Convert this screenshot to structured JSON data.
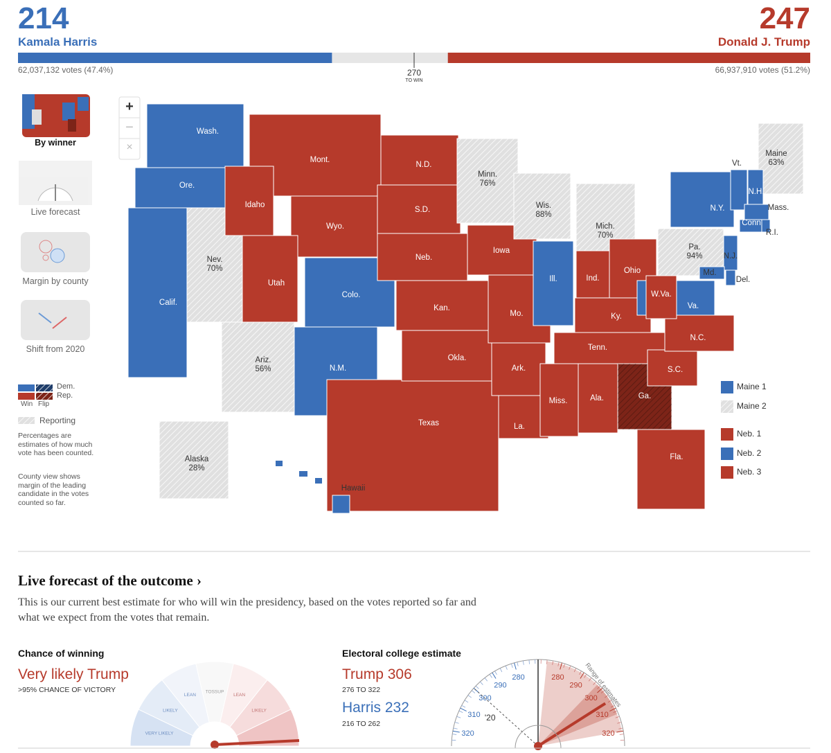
{
  "header": {
    "harris": {
      "electoral_votes": 214,
      "name": "Kamala Harris",
      "popular_vote": "62,037,132 votes (47.4%)",
      "color": "#3a6fb8"
    },
    "trump": {
      "electoral_votes": 247,
      "name": "Donald J. Trump",
      "popular_vote": "66,937,910 votes (51.2%)",
      "color": "#b63a2b"
    },
    "to_win": {
      "value": 270,
      "label": "TO WIN"
    }
  },
  "map_controls": [
    "+",
    "−",
    "×"
  ],
  "views": [
    {
      "label": "By winner",
      "selected": true
    },
    {
      "label": "Live forecast",
      "selected": false
    },
    {
      "label": "Margin by county",
      "selected": false
    },
    {
      "label": "Shift from 2020",
      "selected": false
    }
  ],
  "legend": {
    "dem": "Dem.",
    "rep": "Rep.",
    "win": "Win",
    "flip": "Flip",
    "reporting": "Reporting",
    "notes": [
      "Percentages are estimates of how much vote has been counted.",
      "County view shows margin of the leading candidate in the votes counted so far."
    ]
  },
  "states": [
    {
      "label": "Wash.",
      "color": "#3a6fb8"
    },
    {
      "label": "Ore.",
      "color": "#3a6fb8"
    },
    {
      "label": "Nev.",
      "reporting": "70%",
      "color": "#e0e0e0",
      "hatch": true
    },
    {
      "label": "Calif.",
      "color": "#3a6fb8"
    },
    {
      "label": "Mont.",
      "color": "#b63a2b"
    },
    {
      "label": "Idaho",
      "color": "#b63a2b"
    },
    {
      "label": "Wyo.",
      "color": "#b63a2b"
    },
    {
      "label": "Utah",
      "color": "#b63a2b"
    },
    {
      "label": "Colo.",
      "color": "#3a6fb8"
    },
    {
      "label": "Ariz.",
      "reporting": "56%",
      "color": "#e0e0e0",
      "hatch": true
    },
    {
      "label": "N.M.",
      "color": "#3a6fb8"
    },
    {
      "label": "N.D.",
      "color": "#b63a2b"
    },
    {
      "label": "S.D.",
      "color": "#b63a2b"
    },
    {
      "label": "Neb.",
      "color": "#b63a2b"
    },
    {
      "label": "Kan.",
      "color": "#b63a2b"
    },
    {
      "label": "Texas",
      "color": "#b63a2b"
    },
    {
      "label": "Okla.",
      "color": "#b63a2b"
    },
    {
      "label": "Minn.",
      "reporting": "76%",
      "color": "#e0e0e0",
      "hatch": true
    },
    {
      "label": "Iowa",
      "color": "#b63a2b"
    },
    {
      "label": "Mo.",
      "color": "#b63a2b"
    },
    {
      "label": "Ark.",
      "color": "#b63a2b"
    },
    {
      "label": "La.",
      "color": "#b63a2b"
    },
    {
      "label": "Wis.",
      "reporting": "88%",
      "color": "#e0e0e0",
      "hatch": true
    },
    {
      "label": "Ill.",
      "color": "#3a6fb8"
    },
    {
      "label": "Mich.",
      "reporting": "70%",
      "color": "#e0e0e0",
      "hatch": true
    },
    {
      "label": "Ind.",
      "color": "#b63a2b"
    },
    {
      "label": "Ohio",
      "color": "#b63a2b"
    },
    {
      "label": "Ky.",
      "color": "#b63a2b"
    },
    {
      "label": "Tenn.",
      "color": "#b63a2b"
    },
    {
      "label": "Miss.",
      "color": "#b63a2b"
    },
    {
      "label": "Ala.",
      "color": "#b63a2b"
    },
    {
      "label": "Ga.",
      "color": "#7d2418",
      "hatch": true
    },
    {
      "label": "Fla.",
      "color": "#b63a2b"
    },
    {
      "label": "S.C.",
      "color": "#b63a2b"
    },
    {
      "label": "N.C.",
      "color": "#b63a2b"
    },
    {
      "label": "Va.",
      "color": "#3a6fb8"
    },
    {
      "label": "W.Va.",
      "color": "#b63a2b"
    },
    {
      "label": "Pa.",
      "reporting": "94%",
      "color": "#e0e0e0",
      "hatch": true
    },
    {
      "label": "N.Y.",
      "color": "#3a6fb8"
    },
    {
      "label": "Maine",
      "reporting": "63%",
      "color": "#e0e0e0",
      "hatch": true
    },
    {
      "label": "Vt.",
      "color": "#3a6fb8"
    },
    {
      "label": "N.H.",
      "color": "#3a6fb8"
    },
    {
      "label": "Mass.",
      "color": "#3a6fb8"
    },
    {
      "label": "Conn",
      "color": "#3a6fb8"
    },
    {
      "label": "R.I.",
      "color": "#3a6fb8"
    },
    {
      "label": "N.J.",
      "color": "#3a6fb8"
    },
    {
      "label": "Del.",
      "color": "#3a6fb8"
    },
    {
      "label": "Md.",
      "color": "#3a6fb8"
    },
    {
      "label": "Alaska",
      "reporting": "28%",
      "color": "#e0e0e0",
      "hatch": true
    },
    {
      "label": "Hawaii",
      "color": "#3a6fb8"
    }
  ],
  "districts": [
    {
      "label": "Maine 1",
      "color": "#3a6fb8"
    },
    {
      "label": "Maine 2",
      "color": "#e0e0e0",
      "hatch": true
    },
    {
      "label": "Neb. 1",
      "color": "#b63a2b"
    },
    {
      "label": "Neb. 2",
      "color": "#3a6fb8"
    },
    {
      "label": "Neb. 3",
      "color": "#b63a2b"
    }
  ],
  "forecast": {
    "title": "Live forecast of the outcome ›",
    "description": "This is our current best estimate for who will win the presidency, based on the votes reported so far and what we expect from the votes that remain.",
    "chance": {
      "heading": "Chance of winning",
      "verdict": "Very likely Trump",
      "detail": ">95% CHANCE OF VICTORY",
      "segments": [
        "VERY LIKELY",
        "LIKELY",
        "LEAN",
        "TOSSUP",
        "LEAN",
        "LIKELY"
      ]
    },
    "electoral": {
      "heading": "Electoral college estimate",
      "trump": {
        "name": "Trump",
        "estimate": 306,
        "range": "276 TO 322"
      },
      "harris": {
        "name": "Harris",
        "estimate": 232,
        "range": "216 TO 262"
      },
      "harris_ticks": [
        280,
        290,
        300,
        310,
        320
      ],
      "trump_ticks": [
        280,
        290,
        300,
        310,
        320
      ],
      "previous": "'20",
      "range_label": "Range of estimates"
    }
  }
}
